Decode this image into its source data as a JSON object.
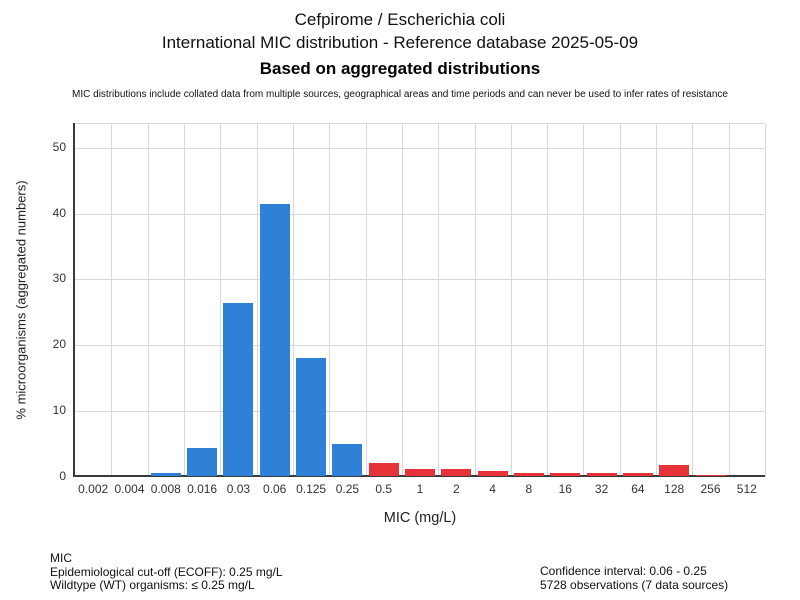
{
  "header": {
    "title_line1": "Cefpirome / Escherichia coli",
    "title_line2": "International MIC distribution - Reference database 2025-05-09",
    "title_line3": "Based on aggregated distributions",
    "disclaimer": "MIC distributions include collated data from multiple sources, geographical areas and time periods and can never be used to infer rates of resistance"
  },
  "chart_data": {
    "type": "bar",
    "title": "Cefpirome / Escherichia coli",
    "subtitle": "International MIC distribution - Reference database 2025-05-09",
    "xlabel": "MIC (mg/L)",
    "ylabel": "% microorganisms (aggregated numbers)",
    "categories": [
      "0.002",
      "0.004",
      "0.008",
      "0.016",
      "0.03",
      "0.06",
      "0.125",
      "0.25",
      "0.5",
      "1",
      "2",
      "4",
      "8",
      "16",
      "32",
      "64",
      "128",
      "256",
      "512"
    ],
    "values": [
      0,
      0,
      0.4,
      4.2,
      26.3,
      41.3,
      17.9,
      4.9,
      1.9,
      1.0,
      1.0,
      0.7,
      0.5,
      0.5,
      0.5,
      0.5,
      1.7,
      0.2,
      0
    ],
    "ylim": [
      0,
      53.6
    ],
    "yticks": [
      0,
      10,
      20,
      30,
      40,
      50
    ],
    "grid": true,
    "legend": "none",
    "ecoff_category": "0.25",
    "wildtype_color": "#2f81d8",
    "non_wildtype_color": "#e6333a",
    "gridline_color": "#d8d8d8",
    "axis_color": "#3a3a3a"
  },
  "footer": {
    "left": {
      "line1": "MIC",
      "line2": "Epidemiological cut-off (ECOFF): 0.25 mg/L",
      "line3": "Wildtype (WT) organisms: ≤ 0.25 mg/L"
    },
    "right": {
      "line1": "Confidence interval: 0.06 - 0.25",
      "line2": "5728 observations (7 data sources)"
    }
  }
}
